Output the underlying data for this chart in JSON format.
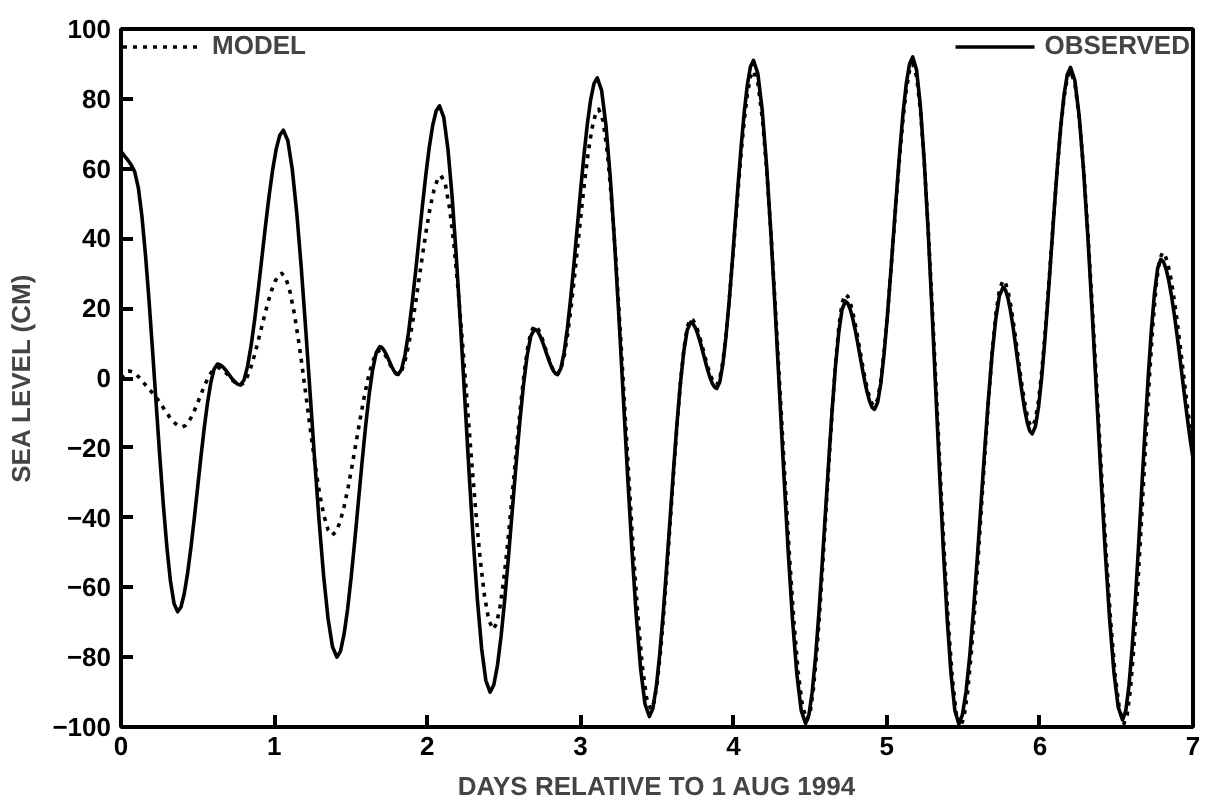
{
  "chart_data": {
    "type": "line",
    "xlabel": "DAYS RELATIVE TO 1 AUG 1994",
    "ylabel": "SEA LEVEL (CM)",
    "xlim": [
      0,
      7
    ],
    "xticks": [
      0,
      1,
      2,
      3,
      4,
      5,
      6,
      7
    ],
    "ylim": [
      -100,
      100
    ],
    "yticks": [
      -100,
      -80,
      -60,
      -40,
      -20,
      0,
      20,
      40,
      60,
      80,
      100
    ],
    "grid": false,
    "legend": "top",
    "marker": "none",
    "series": [
      {
        "name": "MODEL",
        "color": "#000000",
        "line_style": "dotted",
        "x": [
          0,
          0.05,
          0.2,
          0.4,
          0.63,
          0.78,
          1.05,
          1.38,
          1.69,
          1.81,
          2.09,
          2.43,
          2.7,
          2.85,
          3.12,
          3.46,
          3.72,
          3.89,
          4.13,
          4.48,
          4.73,
          4.92,
          5.17,
          5.48,
          5.76,
          5.95,
          6.2,
          6.55,
          6.8,
          7.0
        ],
        "values": [
          0,
          2,
          -4,
          -14,
          3,
          -2,
          30,
          -45,
          8,
          1,
          58,
          -72,
          15,
          1,
          77,
          -95,
          17,
          -2,
          88,
          -98,
          24,
          -8,
          90,
          -100,
          28,
          -14,
          88,
          -99,
          36,
          -20
        ]
      },
      {
        "name": "OBSERVED",
        "color": "#000000",
        "line_style": "solid",
        "x": [
          0,
          0.09,
          0.37,
          0.63,
          0.78,
          1.06,
          1.41,
          1.69,
          1.81,
          2.08,
          2.41,
          2.7,
          2.85,
          3.11,
          3.45,
          3.72,
          3.89,
          4.13,
          4.47,
          4.73,
          4.92,
          5.17,
          5.47,
          5.76,
          5.95,
          6.2,
          6.54,
          6.79,
          7.0
        ],
        "values": [
          65,
          59,
          -67,
          4,
          -2,
          71,
          -80,
          9,
          1,
          78,
          -90,
          14,
          1,
          86,
          -97,
          16,
          -3,
          91,
          -99,
          22,
          -9,
          92,
          -99,
          26,
          -16,
          89,
          -98,
          34,
          -23
        ]
      }
    ]
  }
}
